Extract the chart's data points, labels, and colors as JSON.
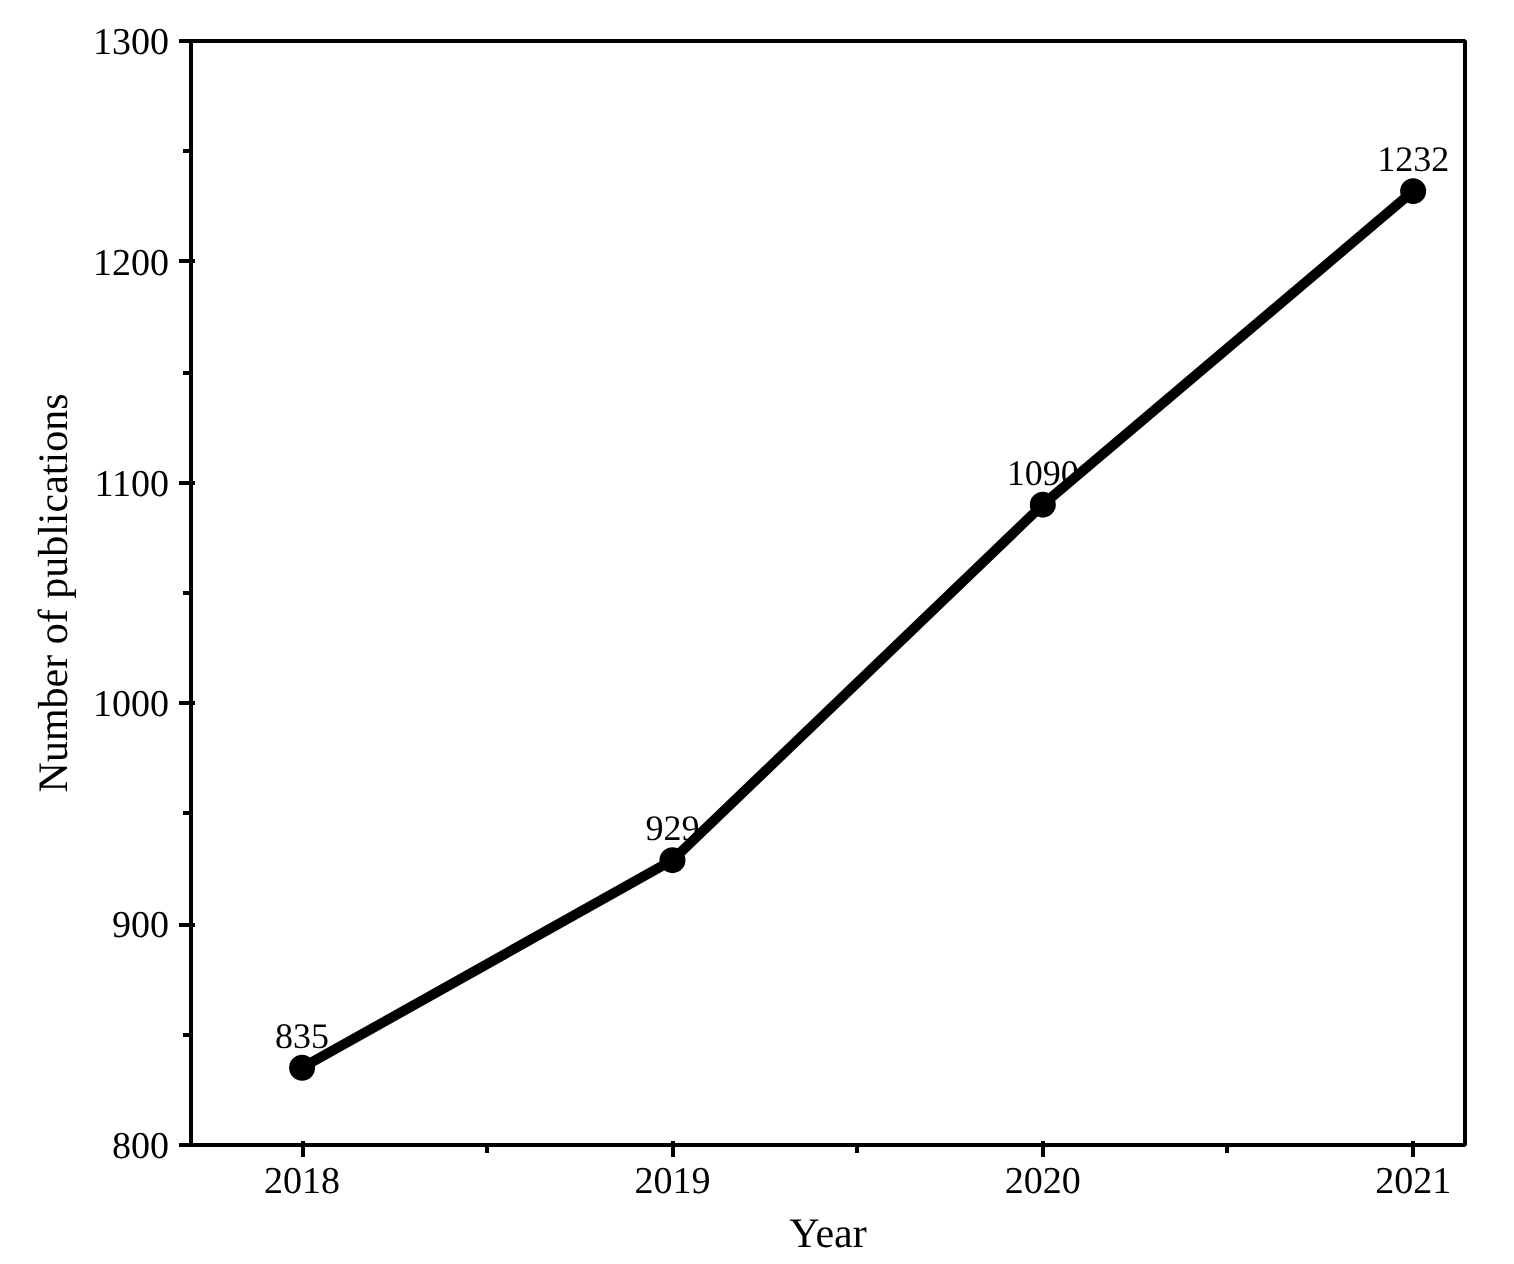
{
  "chart_data": {
    "type": "line",
    "xlabel": "Year",
    "ylabel": "Number of publications",
    "x": [
      2018,
      2019,
      2020,
      2021
    ],
    "series": [
      {
        "color": "#000000",
        "values": [
          835,
          929,
          1090,
          1232
        ]
      }
    ],
    "xlim": [
      2017.7,
      2021.14
    ],
    "ylim": [
      800,
      1300
    ],
    "xticks": [
      2018,
      {
        "value": 2018.5,
        "label": null
      },
      2019,
      {
        "value": 2019.5,
        "label": null
      },
      2020,
      {
        "value": 2020.5,
        "label": null
      },
      2021
    ],
    "yticks": [
      800,
      {
        "value": 850,
        "label": null
      },
      900,
      {
        "value": 950,
        "label": null
      },
      1000,
      {
        "value": 1050,
        "label": null
      },
      1100,
      {
        "value": 1150,
        "label": null
      },
      1200,
      {
        "value": 1250,
        "label": null
      },
      1300
    ],
    "data_labels": true,
    "marker": "circle",
    "line_style": "solid"
  }
}
